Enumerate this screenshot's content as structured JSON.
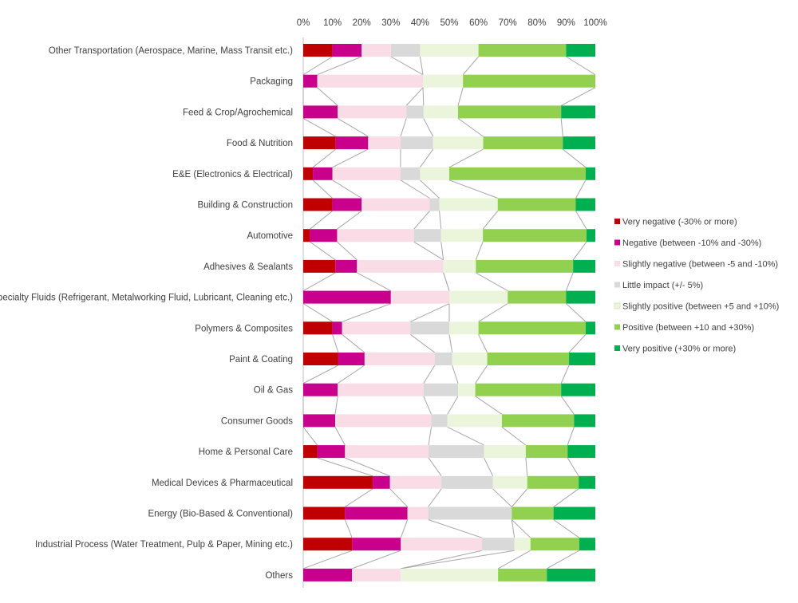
{
  "chart_data": {
    "type": "bar",
    "orientation": "horizontal",
    "stacked": "100%",
    "title": "",
    "xlim": [
      0,
      100
    ],
    "x_ticks": [
      "0%",
      "10%",
      "20%",
      "30%",
      "40%",
      "50%",
      "60%",
      "70%",
      "80%",
      "90%",
      "100%"
    ],
    "x_axis_position": "top",
    "series_lines": true,
    "grid": false,
    "legend_position": "right",
    "categories": [
      "Other Transportation (Aerospace, Marine, Mass Transit etc.)",
      "Packaging",
      "Feed & Crop/Agrochemical",
      "Food & Nutrition",
      "E&E (Electronics & Electrical)",
      "Building & Construction",
      "Automotive",
      "Adhesives & Sealants",
      "Specialty Fluids (Refrigerant, Metalworking Fluid, Lubricant, Cleaning etc.)",
      "Polymers & Composites",
      "Paint & Coating",
      "Oil & Gas",
      "Consumer Goods",
      "Home & Personal Care",
      "Medical Devices & Pharmaceutical",
      "Energy (Bio-Based & Conventional)",
      "Industrial Process (Water Treatment, Pulp & Paper, Mining etc.)",
      "Others"
    ],
    "series": [
      {
        "name": "Very negative (-30% or more)",
        "color": "#c00000",
        "values": [
          10,
          0,
          0,
          11,
          3.3,
          10,
          2.3,
          11,
          0,
          10,
          12,
          0,
          0,
          4.8,
          23.8,
          14.3,
          16.7,
          0
        ]
      },
      {
        "name": "Negative (between -10% and -30%)",
        "color": "#c8008c",
        "values": [
          10,
          4.8,
          11.8,
          11,
          6.7,
          10,
          9.3,
          7.4,
          30,
          3.3,
          9,
          11.8,
          10.5,
          9.5,
          5.9,
          21.4,
          16.7,
          16.7
        ]
      },
      {
        "name": "Slightly negative (between -5 and -10%)",
        "color": "#fadce6",
        "values": [
          10,
          36.2,
          23.5,
          11,
          23.3,
          23.3,
          26.3,
          29.6,
          20,
          23.4,
          24,
          29.4,
          31.6,
          28.6,
          17.6,
          7.1,
          27.8,
          16.7
        ]
      },
      {
        "name": "Little impact (+/- 5%)",
        "color": "#d9d9d9",
        "values": [
          10,
          0,
          5.9,
          11,
          6.7,
          3.3,
          9.3,
          0,
          0,
          13.3,
          6,
          11.8,
          5.3,
          19,
          17.6,
          28.6,
          11.1,
          0
        ]
      },
      {
        "name": "Slightly positive (between +5 and +10%)",
        "color": "#ebf5dc",
        "values": [
          20,
          13.7,
          11.8,
          17,
          10,
          20,
          14.3,
          11.1,
          20,
          10,
          12,
          5.9,
          17.9,
          14.3,
          11.8,
          0,
          5.5,
          33.3
        ]
      },
      {
        "name": "Positive (between +10 and +30%)",
        "color": "#92d050",
        "values": [
          30,
          45.3,
          35.3,
          27,
          46.7,
          26.7,
          35.5,
          33.3,
          20,
          36.7,
          28,
          29.4,
          23.7,
          14.3,
          17.6,
          14.3,
          16.7,
          16.7
        ]
      },
      {
        "name": "Very positive (+30% or more)",
        "color": "#00b050",
        "values": [
          10,
          0,
          11.7,
          11,
          3.3,
          6.7,
          3,
          7.6,
          10,
          3.3,
          9,
          11.7,
          7,
          9.5,
          5.7,
          14.3,
          5.5,
          16.6
        ]
      }
    ]
  }
}
